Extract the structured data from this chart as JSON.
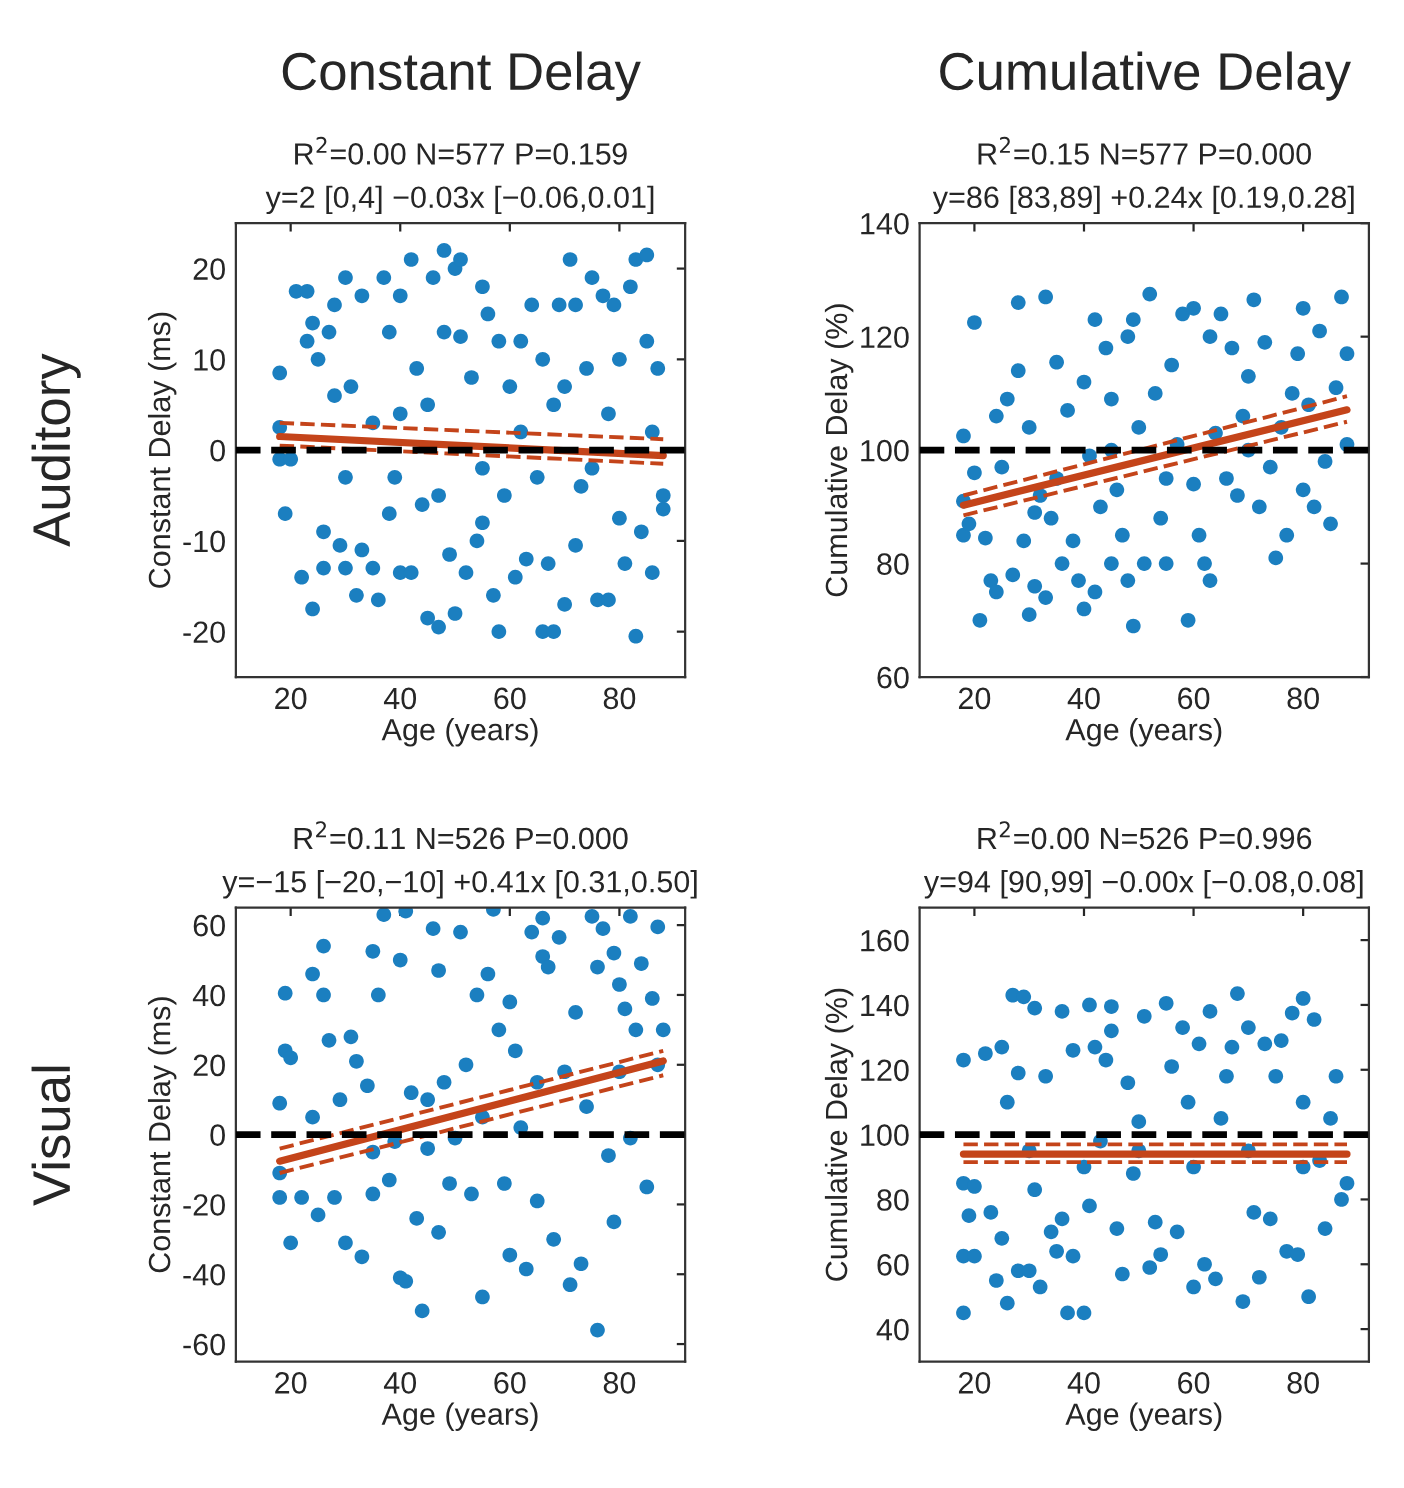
{
  "chart_data": [
    {
      "type": "scatter",
      "title": "R$^{2}$=0.00 N=577 P=0.159",
      "subtitle": "y=2 [0,4] −0.03x [−0.06,0.01]",
      "xlabel": "Age (years)",
      "ylabel": "Constant Delay (ms)",
      "annotations": [
        "Constant Delay",
        "Auditory"
      ],
      "xlim": [
        10,
        92
      ],
      "xticks": [
        20,
        40,
        60,
        80
      ],
      "ylim": [
        -25,
        25
      ],
      "yticks": [
        -20,
        -10,
        0,
        10,
        20
      ],
      "ref_lines": [
        {
          "axis": "y",
          "value": 0,
          "color": "#000000",
          "line_style": "dashed"
        }
      ],
      "series": [
        {
          "color": "#1b7fc0",
          "marker": "circle",
          "x": [
            18,
            18,
            18,
            19,
            20,
            21,
            22,
            23,
            23,
            24,
            24,
            25,
            26,
            26,
            27,
            28,
            28,
            29,
            30,
            30,
            31,
            32,
            33,
            33,
            35,
            36,
            37,
            38,
            38,
            39,
            40,
            40,
            40,
            42,
            42,
            43,
            44,
            45,
            46,
            47,
            47,
            48,
            48,
            49,
            50,
            50,
            51,
            51,
            52,
            53,
            54,
            55,
            55,
            56,
            57,
            58,
            58,
            59,
            60,
            61,
            62,
            63,
            64,
            65,
            66,
            66,
            67,
            68,
            69,
            70,
            70,
            71,
            72,
            72,
            73,
            74,
            75,
            76,
            77,
            78,
            78,
            79,
            80,
            80,
            81,
            82,
            83,
            83,
            84,
            85,
            85,
            86,
            86,
            87,
            88,
            88,
            45,
            35,
            62,
            75,
            55,
            30,
            68
          ],
          "values": [
            8.5,
            2.5,
            -1,
            -7,
            -1,
            17.5,
            -14,
            17.5,
            12,
            -17.5,
            14,
            10,
            -9,
            -13,
            13,
            16,
            6,
            -10.5,
            19,
            -13,
            7,
            -16,
            17,
            -11,
            -13,
            -16.5,
            19,
            13,
            -7,
            -3,
            17,
            4,
            -13.5,
            21,
            -13.5,
            9,
            -6,
            -18.5,
            19,
            -19.5,
            -5,
            22,
            13,
            -11.5,
            20,
            -18,
            21,
            12.5,
            -13.5,
            8,
            -10,
            18,
            -2,
            15,
            -16,
            -20,
            12,
            -5,
            7,
            -14,
            12,
            -12,
            16,
            -3,
            -20,
            10,
            -12.5,
            -20,
            16,
            -17,
            7,
            21,
            16,
            -10.5,
            -4,
            9,
            19,
            -16.5,
            17,
            -16.5,
            4,
            16,
            10,
            -7.5,
            -12.5,
            18,
            -20.5,
            21,
            -9,
            21.5,
            12,
            -13.5,
            2,
            9,
            -5,
            -6.5,
            5,
            3,
            2,
            -2,
            -8,
            -3,
            5
          ]
        },
        {
          "type": "line",
          "color": "#c4441a",
          "line_style": "solid",
          "x": [
            18,
            88
          ],
          "values": [
            1.5,
            -0.6
          ]
        },
        {
          "type": "line",
          "color": "#c4441a",
          "line_style": "dashed",
          "x": [
            18,
            88
          ],
          "values": [
            0.5,
            -1.5
          ]
        },
        {
          "type": "line",
          "color": "#c4441a",
          "line_style": "dashed",
          "x": [
            18,
            88
          ],
          "values": [
            3,
            1.2
          ]
        }
      ]
    },
    {
      "type": "scatter",
      "title": "R$^{2}$=0.15 N=577 P=0.000",
      "subtitle": "y=86 [83,89] +0.24x [0.19,0.28]",
      "xlabel": "Age (years)",
      "ylabel": "Cumulative Delay (%)",
      "annotations": [
        "Cumulative Delay"
      ],
      "xlim": [
        10,
        92
      ],
      "xticks": [
        20,
        40,
        60,
        80
      ],
      "ylim": [
        60,
        140
      ],
      "yticks": [
        60,
        80,
        100,
        120,
        140
      ],
      "ref_lines": [
        {
          "axis": "y",
          "value": 100,
          "color": "#000000",
          "line_style": "dashed"
        }
      ],
      "series": [
        {
          "color": "#1b7fc0",
          "marker": "circle",
          "x": [
            18,
            18,
            18,
            19,
            20,
            20,
            21,
            22,
            23,
            24,
            24,
            25,
            26,
            27,
            28,
            28,
            29,
            30,
            30,
            31,
            31,
            32,
            33,
            33,
            34,
            35,
            36,
            37,
            38,
            39,
            40,
            40,
            41,
            42,
            42,
            43,
            44,
            45,
            45,
            46,
            47,
            48,
            48,
            49,
            49,
            50,
            51,
            52,
            53,
            54,
            55,
            56,
            57,
            58,
            59,
            60,
            60,
            61,
            62,
            63,
            63,
            64,
            65,
            66,
            67,
            68,
            69,
            70,
            71,
            72,
            73,
            74,
            75,
            76,
            77,
            78,
            79,
            80,
            80,
            81,
            82,
            83,
            84,
            85,
            86,
            87,
            88,
            88,
            70,
            55,
            45,
            35
          ],
          "values": [
            102.5,
            85,
            91,
            87,
            96,
            122.5,
            70,
            84.5,
            77,
            106,
            75,
            97,
            109,
            78,
            114,
            126,
            84,
            71,
            104,
            76,
            89,
            92,
            74,
            127,
            88,
            115.5,
            80,
            107,
            84,
            77,
            72,
            112,
            99,
            123,
            75,
            90,
            118,
            109,
            80,
            93,
            85,
            120,
            77,
            69,
            123,
            104,
            80,
            127.5,
            110,
            88,
            80,
            115,
            101,
            124,
            70,
            125,
            94,
            85,
            80,
            120,
            77,
            103,
            124,
            95,
            118,
            92,
            106,
            113,
            126.5,
            90,
            119,
            97,
            81,
            104,
            85,
            110,
            117,
            125,
            93,
            108,
            90,
            121,
            98,
            87,
            111,
            127,
            117,
            101,
            100,
            95,
            100,
            95
          ]
        },
        {
          "type": "line",
          "color": "#c4441a",
          "line_style": "solid",
          "x": [
            18,
            88
          ],
          "values": [
            90.3,
            107.1
          ]
        },
        {
          "type": "line",
          "color": "#c4441a",
          "line_style": "dashed",
          "x": [
            18,
            88
          ],
          "values": [
            88.5,
            105
          ]
        },
        {
          "type": "line",
          "color": "#c4441a",
          "line_style": "dashed",
          "x": [
            18,
            88
          ],
          "values": [
            92,
            109.5
          ]
        }
      ]
    },
    {
      "type": "scatter",
      "title": "R$^{2}$=0.11 N=526 P=0.000",
      "subtitle": "y=−15 [−20,−10] +0.41x [0.31,0.50]",
      "xlabel": "Age (years)",
      "ylabel": "Constant Delay (ms)",
      "annotations": [
        "Visual"
      ],
      "xlim": [
        10,
        92
      ],
      "xticks": [
        20,
        40,
        60,
        80
      ],
      "ylim": [
        -65,
        65
      ],
      "yticks": [
        -60,
        -40,
        -20,
        0,
        20,
        40,
        60
      ],
      "ref_lines": [
        {
          "axis": "y",
          "value": 0,
          "color": "#000000",
          "line_style": "dashed"
        }
      ],
      "series": [
        {
          "color": "#1b7fc0",
          "marker": "circle",
          "x": [
            18,
            18,
            18,
            19,
            19,
            20,
            20,
            22,
            24,
            24,
            25,
            26,
            26,
            27,
            28,
            29,
            30,
            31,
            32,
            33,
            34,
            35,
            35,
            36,
            37,
            38,
            39,
            40,
            40,
            41,
            41,
            42,
            43,
            44,
            45,
            46,
            47,
            47,
            48,
            49,
            50,
            51,
            52,
            53,
            54,
            55,
            56,
            57,
            58,
            59,
            60,
            60,
            61,
            62,
            63,
            64,
            65,
            66,
            66,
            67,
            68,
            69,
            70,
            71,
            72,
            73,
            74,
            75,
            76,
            76,
            77,
            78,
            79,
            79,
            80,
            80,
            81,
            82,
            82,
            83,
            84,
            85,
            86,
            87,
            88,
            87,
            45,
            55,
            65,
            35
          ],
          "values": [
            -18,
            9,
            -11,
            40.5,
            24,
            -31,
            22,
            -18,
            5,
            46,
            -23,
            54,
            40,
            27,
            -18,
            10,
            -31,
            28,
            21,
            -35,
            14,
            -17,
            52.5,
            40,
            63,
            -13,
            -2,
            50,
            -41,
            64,
            -42,
            12,
            -24,
            -50.5,
            -4,
            59,
            47,
            -28,
            15,
            -14,
            -1,
            58,
            20,
            -17,
            40,
            -46.5,
            46,
            64.5,
            30,
            -14,
            -34.5,
            38,
            24,
            2,
            -38.5,
            58,
            -19,
            62,
            51,
            48,
            -30,
            56.5,
            18,
            -43,
            35,
            -37,
            8,
            62.5,
            -56,
            48,
            59,
            -6,
            52,
            -25,
            43,
            18,
            36,
            62.5,
            -1,
            30,
            49,
            -15,
            39,
            59.5,
            30,
            20,
            10,
            5,
            15,
            -5
          ]
        },
        {
          "type": "line",
          "color": "#c4441a",
          "line_style": "solid",
          "x": [
            18,
            88
          ],
          "values": [
            -7.6,
            21.1
          ]
        },
        {
          "type": "line",
          "color": "#c4441a",
          "line_style": "dashed",
          "x": [
            18,
            88
          ],
          "values": [
            -11,
            17
          ]
        },
        {
          "type": "line",
          "color": "#c4441a",
          "line_style": "dashed",
          "x": [
            18,
            88
          ],
          "values": [
            -4,
            24
          ]
        }
      ]
    },
    {
      "type": "scatter",
      "title": "R$^{2}$=0.00 N=526 P=0.996",
      "subtitle": "y=94 [90,99] −0.00x [−0.08,0.08]",
      "xlabel": "Age (years)",
      "ylabel": "Cumulative Delay (%)",
      "xlim": [
        10,
        92
      ],
      "xticks": [
        20,
        40,
        60,
        80
      ],
      "ylim": [
        30,
        170
      ],
      "yticks": [
        40,
        60,
        80,
        100,
        120,
        140,
        160
      ],
      "ref_lines": [
        {
          "axis": "y",
          "value": 100,
          "color": "#000000",
          "line_style": "dashed"
        }
      ],
      "series": [
        {
          "color": "#1b7fc0",
          "marker": "circle",
          "x": [
            18,
            18,
            18,
            18,
            19,
            20,
            20,
            22,
            23,
            24,
            25,
            25,
            26,
            26,
            27,
            28,
            28,
            29,
            30,
            31,
            31,
            32,
            33,
            34,
            35,
            36,
            36,
            37,
            38,
            38,
            40,
            41,
            41,
            42,
            43,
            44,
            45,
            45,
            46,
            47,
            48,
            49,
            50,
            51,
            52,
            53,
            54,
            55,
            56,
            57,
            58,
            59,
            60,
            61,
            62,
            63,
            64,
            65,
            66,
            67,
            68,
            69,
            70,
            71,
            72,
            73,
            74,
            75,
            76,
            77,
            78,
            79,
            80,
            80,
            81,
            82,
            83,
            84,
            85,
            86,
            87,
            88,
            40,
            50,
            60,
            70,
            30,
            80
          ],
          "values": [
            45,
            123,
            85,
            62.5,
            75,
            84,
            62.5,
            125,
            76,
            55,
            127,
            68,
            48,
            110,
            143,
            58,
            119,
            142.5,
            58,
            139,
            83,
            53,
            118,
            70,
            64,
            138,
            74,
            45,
            62.5,
            126,
            45,
            140,
            78,
            127,
            98,
            123,
            132,
            139.5,
            71,
            57,
            116,
            88,
            104,
            136.5,
            59,
            73,
            63,
            140.5,
            121,
            70,
            133,
            110,
            53,
            128,
            60,
            138,
            55.5,
            105,
            118,
            127,
            143.5,
            48.5,
            133,
            76,
            56,
            128,
            74,
            118,
            129,
            64,
            137.5,
            63,
            142,
            110,
            50,
            135.5,
            92,
            71,
            105,
            118,
            80,
            85,
            90,
            95,
            90,
            95,
            95,
            90
          ]
        },
        {
          "type": "line",
          "color": "#c4441a",
          "line_style": "solid",
          "x": [
            18,
            88
          ],
          "values": [
            94,
            94
          ]
        },
        {
          "type": "line",
          "color": "#c4441a",
          "line_style": "dashed",
          "x": [
            18,
            88
          ],
          "values": [
            91.5,
            91.5
          ]
        },
        {
          "type": "line",
          "color": "#c4441a",
          "line_style": "dashed",
          "x": [
            18,
            88
          ],
          "values": [
            97,
            97
          ]
        }
      ]
    }
  ]
}
